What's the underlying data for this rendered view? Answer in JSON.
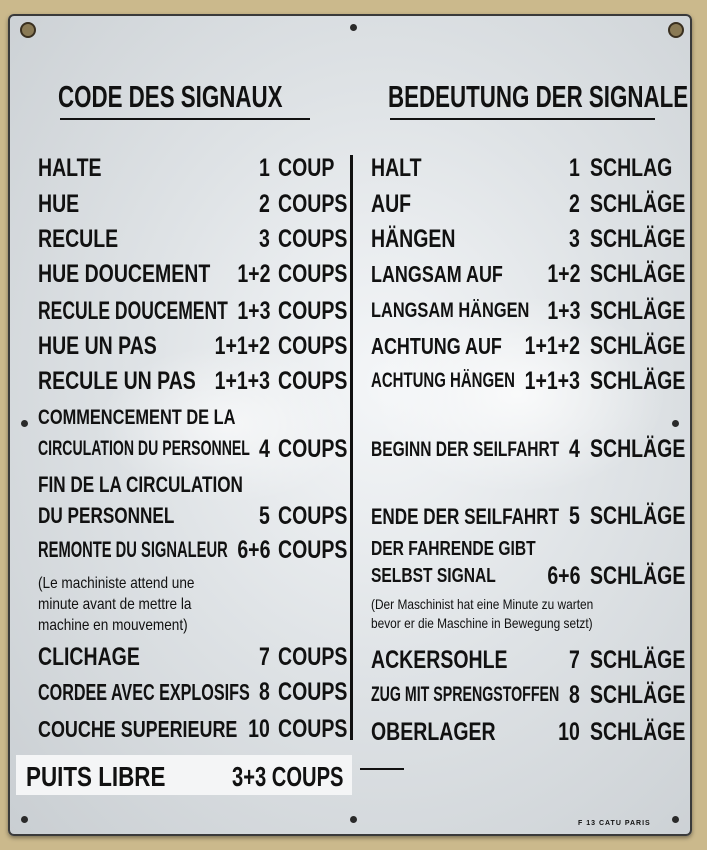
{
  "headers": {
    "left": "CODE DES SIGNAUX",
    "right": "BEDEUTUNG DER SIGNALE"
  },
  "left": [
    {
      "label": "HALTE",
      "count": "1",
      "unit": "COUP"
    },
    {
      "label": "HUE",
      "count": "2",
      "unit": "COUPS"
    },
    {
      "label": "RECULE",
      "count": "3",
      "unit": "COUPS"
    },
    {
      "label": "HUE DOUCEMENT",
      "count": "1+2",
      "unit": "COUPS"
    },
    {
      "label": "RECULE DOUCEMENT",
      "count": "1+3",
      "unit": "COUPS"
    },
    {
      "label": "HUE UN PAS",
      "count": "1+1+2",
      "unit": "COUPS"
    },
    {
      "label": "RECULE UN PAS",
      "count": "1+1+3",
      "unit": "COUPS"
    },
    {
      "label1": "COMMENCEMENT DE LA",
      "label2": "CIRCULATION DU PERSONNEL",
      "count": "4",
      "unit": "COUPS"
    },
    {
      "label1": "FIN DE LA CIRCULATION",
      "label2": "DU PERSONNEL",
      "count": "5",
      "unit": "COUPS"
    },
    {
      "label": "REMONTE DU SIGNALEUR",
      "count": "6+6",
      "unit": "COUPS"
    },
    {
      "note1": "(Le machiniste attend une",
      "note2": "minute avant de mettre la",
      "note3": "machine en mouvement)"
    },
    {
      "label": "CLICHAGE",
      "count": "7",
      "unit": "COUPS"
    },
    {
      "label": "CORDEE AVEC EXPLOSIFS",
      "count": "8",
      "unit": "COUPS"
    },
    {
      "label": "COUCHE SUPERIEURE",
      "count": "10",
      "unit": "COUPS"
    }
  ],
  "right": [
    {
      "label": "HALT",
      "count": "1",
      "unit": "SCHLAG"
    },
    {
      "label": "AUF",
      "count": "2",
      "unit": "SCHLÄGE"
    },
    {
      "label": "HÄNGEN",
      "count": "3",
      "unit": "SCHLÄGE"
    },
    {
      "label": "LANGSAM AUF",
      "count": "1+2",
      "unit": "SCHLÄGE"
    },
    {
      "label": "LANGSAM HÄNGEN",
      "count": "1+3",
      "unit": "SCHLÄGE"
    },
    {
      "label": "ACHTUNG AUF",
      "count": "1+1+2",
      "unit": "SCHLÄGE"
    },
    {
      "label": "ACHTUNG HÄNGEN",
      "count": "1+1+3",
      "unit": "SCHLÄGE"
    },
    {
      "label": "BEGINN DER SEILFAHRT",
      "count": "4",
      "unit": "SCHLÄGE"
    },
    {
      "label": "ENDE DER SEILFAHRT",
      "count": "5",
      "unit": "SCHLÄGE"
    },
    {
      "label1": "DER FAHRENDE GIBT",
      "label2": "SELBST SIGNAL",
      "count": "6+6",
      "unit": "SCHLÄGE"
    },
    {
      "note1": "(Der Maschinist hat eine Minute zu warten",
      "note2": "bevor er die Maschine in Bewegung setzt)"
    },
    {
      "label": "ACKERSOHLE",
      "count": "7",
      "unit": "SCHLÄGE"
    },
    {
      "label": "ZUG MIT SPRENGSTOFFEN",
      "count": "8",
      "unit": "SCHLÄGE"
    },
    {
      "label": "OBERLAGER",
      "count": "10",
      "unit": "SCHLÄGE"
    }
  ],
  "footer": {
    "label": "PUITS LIBRE",
    "count": "3+3 COUPS"
  },
  "maker": "F 13  CATU  PARIS"
}
